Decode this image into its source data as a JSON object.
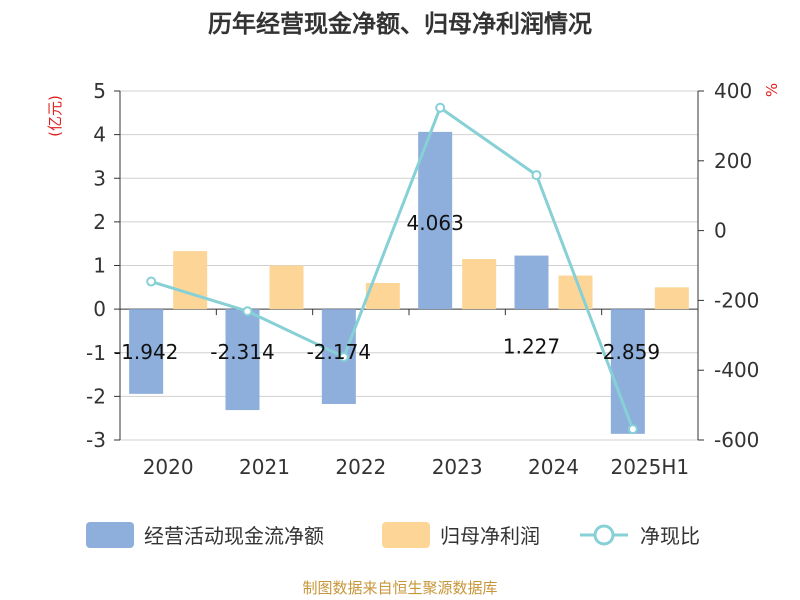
{
  "chart_data": {
    "type": "bar",
    "title": "历年经营现金净额、归母净利润情况",
    "categories": [
      "2020",
      "2021",
      "2022",
      "2023",
      "2024",
      "2025H1"
    ],
    "series": [
      {
        "name": "经营活动现金流净额",
        "type": "bar",
        "axis": "left",
        "color": "#8eaedb",
        "values": [
          -1.942,
          -2.314,
          -2.174,
          4.063,
          1.227,
          -2.859
        ],
        "labels": [
          "-1.942",
          "-2.314",
          "-2.174",
          "4.063",
          "1.227",
          "-2.859"
        ]
      },
      {
        "name": "归母净利润",
        "type": "bar",
        "axis": "left",
        "color": "#fdd697",
        "values": [
          1.33,
          1.0,
          0.6,
          1.15,
          0.77,
          0.5
        ]
      },
      {
        "name": "净现比",
        "type": "line",
        "axis": "right",
        "color": "#86d0d6",
        "values": [
          -146,
          -231,
          -362,
          352,
          159,
          -569
        ]
      }
    ],
    "left_axis": {
      "label": "(亿元)",
      "ylim": [
        -3,
        5
      ],
      "ticks": [
        "5",
        "4",
        "3",
        "2",
        "1",
        "0",
        "-1",
        "-2",
        "-3"
      ]
    },
    "right_axis": {
      "label": "%",
      "ylim": [
        -600,
        400
      ],
      "ticks": [
        "400",
        "200",
        "0",
        "-200",
        "-400",
        "-600"
      ]
    },
    "grid": true,
    "legend_position": "bottom"
  },
  "source": "制图数据来自恒生聚源数据库"
}
